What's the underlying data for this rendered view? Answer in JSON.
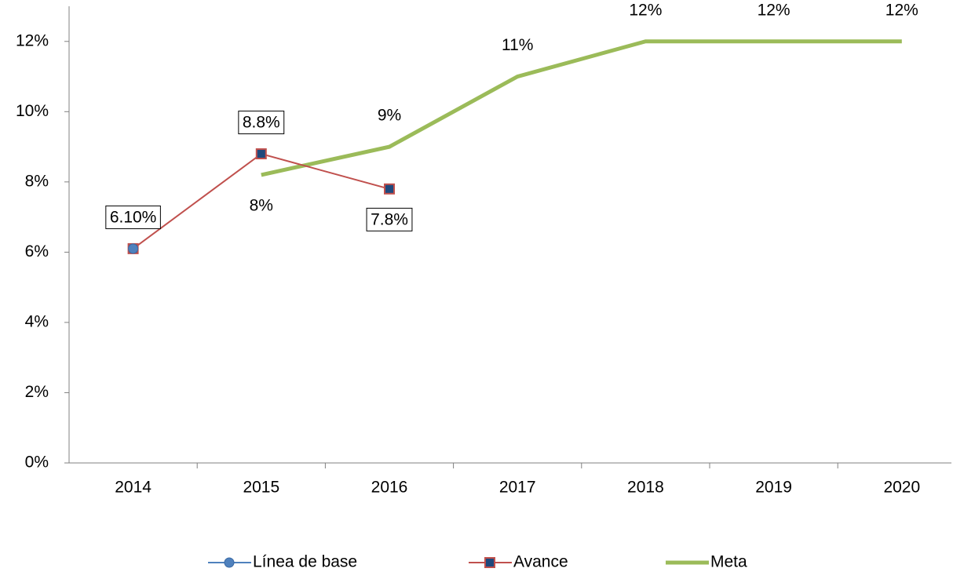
{
  "chart_data": {
    "type": "line",
    "categories": [
      "2014",
      "2015",
      "2016",
      "2017",
      "2018",
      "2019",
      "2020"
    ],
    "series": [
      {
        "name": "Línea de base",
        "color": "#4f81bd",
        "marker": "circle",
        "values": [
          6.1,
          null,
          null,
          null,
          null,
          null,
          null
        ],
        "value_labels": [
          "6.10%",
          null,
          null,
          null,
          null,
          null,
          null
        ]
      },
      {
        "name": "Avance",
        "color": "#c0504d",
        "marker": "square",
        "values": [
          6.1,
          8.8,
          7.8,
          null,
          null,
          null,
          null
        ],
        "value_labels": [
          null,
          "8.8%",
          "7.8%",
          null,
          null,
          null,
          null
        ]
      },
      {
        "name": "Meta",
        "color": "#9bbb59",
        "values": [
          null,
          8.2,
          9,
          11,
          12,
          12,
          12
        ],
        "value_labels": [
          null,
          "8%",
          "9%",
          "11%",
          "12%",
          "12%",
          "12%"
        ]
      }
    ],
    "ylim": [
      0,
      13
    ],
    "yticks": [
      {
        "value": 0,
        "label": "0%"
      },
      {
        "value": 2,
        "label": "2%"
      },
      {
        "value": 4,
        "label": "4%"
      },
      {
        "value": 6,
        "label": "6%"
      },
      {
        "value": 8,
        "label": "8%"
      },
      {
        "value": 10,
        "label": "10%"
      },
      {
        "value": 12,
        "label": "12%"
      }
    ],
    "legend": "bottom"
  }
}
